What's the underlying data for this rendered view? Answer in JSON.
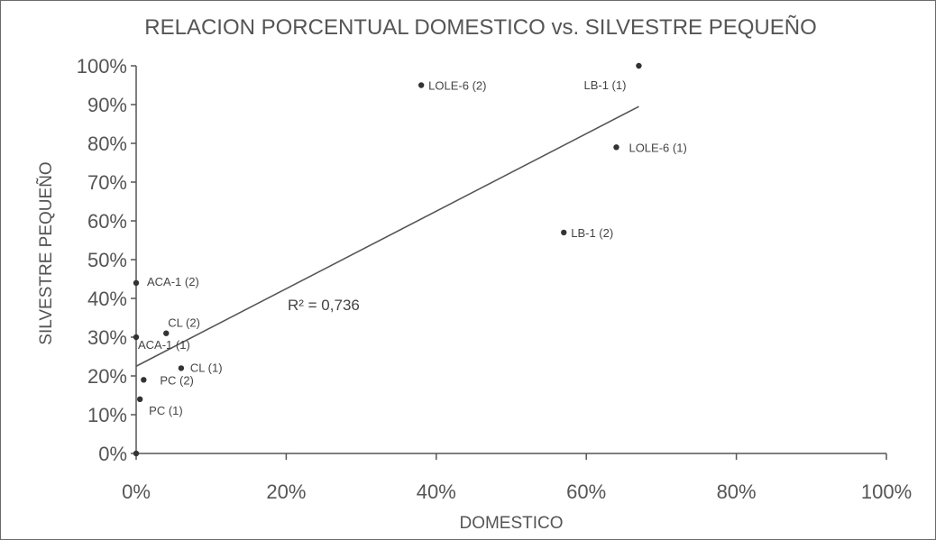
{
  "chart_data": {
    "type": "scatter",
    "title": "RELACION PORCENTUAL DOMESTICO vs. SILVESTRE PEQUEÑO",
    "xlabel": "DOMESTICO",
    "ylabel": "SILVESTRE PEQUEÑO",
    "xlim": [
      0,
      1
    ],
    "ylim": [
      0,
      1
    ],
    "x_ticks": [
      0,
      0.2,
      0.4,
      0.6,
      0.8,
      1.0
    ],
    "x_tick_labels": [
      "0%",
      "20%",
      "40%",
      "60%",
      "80%",
      "100%"
    ],
    "y_ticks": [
      0,
      0.1,
      0.2,
      0.3,
      0.4,
      0.5,
      0.6,
      0.7,
      0.8,
      0.9,
      1.0
    ],
    "y_tick_labels": [
      "0%",
      "10%",
      "20%",
      "30%",
      "40%",
      "50%",
      "60%",
      "70%",
      "80%",
      "90%",
      "100%"
    ],
    "grid": false,
    "points": [
      {
        "label": "LOLE-6 (2)",
        "x": 0.38,
        "y": 0.95
      },
      {
        "label": "LB-1 (1)",
        "x": 0.67,
        "y": 1.0
      },
      {
        "label": "LOLE-6 (1)",
        "x": 0.64,
        "y": 0.79
      },
      {
        "label": "LB-1 (2)",
        "x": 0.57,
        "y": 0.57
      },
      {
        "label": "ACA-1 (2)",
        "x": 0.0,
        "y": 0.44
      },
      {
        "label": "CL (2)",
        "x": 0.04,
        "y": 0.31
      },
      {
        "label": "ACA-1 (1)",
        "x": 0.0,
        "y": 0.3
      },
      {
        "label": "CL (1)",
        "x": 0.06,
        "y": 0.22
      },
      {
        "label": "PC (2)",
        "x": 0.01,
        "y": 0.19
      },
      {
        "label": "PC (1)",
        "x": 0.005,
        "y": 0.14
      },
      {
        "label": "",
        "x": 0.0,
        "y": 0.0
      }
    ],
    "trendline": {
      "type": "linear",
      "x_range": [
        0,
        0.67
      ],
      "intercept": 0.225,
      "slope": 1.0,
      "r2_text": "R² = 0,736"
    }
  }
}
